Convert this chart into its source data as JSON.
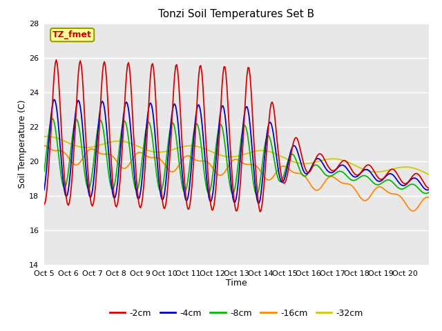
{
  "title": "Tonzi Soil Temperatures Set B",
  "xlabel": "Time",
  "ylabel": "Soil Temperature (C)",
  "annotation_text": "TZ_fmet",
  "annotation_color": "#cc0000",
  "annotation_bg": "#ffff99",
  "annotation_border": "#999900",
  "ylim": [
    14,
    28
  ],
  "yticks": [
    14,
    16,
    18,
    20,
    22,
    24,
    26,
    28
  ],
  "x_tick_labels": [
    "Oct 5",
    "Oct 6",
    "Oct 7",
    "Oct 8",
    "Oct 9",
    "Oct 10",
    "Oct 11",
    "Oct 12",
    "Oct 13",
    "Oct 14",
    "Oct 15",
    "Oct 16",
    "Oct 17",
    "Oct 18",
    "Oct 19",
    "Oct 20"
  ],
  "legend_labels": [
    "-2cm",
    "-4cm",
    "-8cm",
    "-16cm",
    "-32cm"
  ],
  "legend_colors": [
    "#dd0000",
    "#0000cc",
    "#00bb00",
    "#ff8800",
    "#cccc00"
  ],
  "bg_color": "#e8e8e8",
  "fig_bg_color": "#ffffff",
  "grid_color": "#ffffff",
  "title_fontsize": 11,
  "axis_label_fontsize": 9,
  "tick_fontsize": 8
}
